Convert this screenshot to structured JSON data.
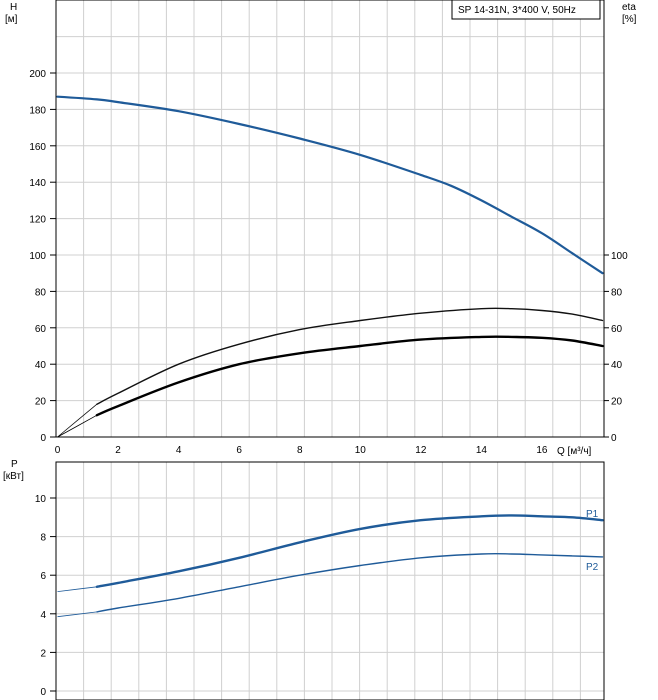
{
  "chart_data": [
    {
      "type": "line",
      "panel": "head-efficiency",
      "legend_box": "SP 14-31N, 3*400 V, 50Hz",
      "ylabel_left": "H",
      "ylabel_left_unit": "[м]",
      "ylabel_right": "eta",
      "ylabel_right_unit": "[%]",
      "xlabel": "Q [м³/ч]",
      "xlim": [
        0,
        18
      ],
      "ylim": [
        0,
        210
      ],
      "x_ticks": [
        "0",
        "2",
        "4",
        "6",
        "8",
        "10",
        "12",
        "14",
        "16"
      ],
      "y_ticks_left": [
        "0",
        "20",
        "40",
        "60",
        "80",
        "100",
        "120",
        "140",
        "160",
        "180",
        "200"
      ],
      "y_ticks_right": [
        "0",
        "20",
        "40",
        "60",
        "80",
        "100"
      ],
      "grid": true,
      "series": [
        {
          "color": "#1f5b99",
          "x": [
            0,
            1.3,
            2,
            4,
            6,
            8,
            10,
            12,
            13,
            14,
            15,
            16,
            17,
            18
          ],
          "y": [
            187,
            185.5,
            184,
            179,
            172,
            164,
            155,
            144,
            138,
            130,
            121,
            112,
            101,
            90
          ]
        },
        {
          "color": "#111111",
          "dashed_segment_to_x": 1.3,
          "x": [
            0,
            1.3,
            2,
            4,
            6,
            8,
            10,
            12,
            14,
            15,
            16,
            17,
            18
          ],
          "y": [
            0,
            18,
            24,
            40,
            51,
            59,
            64,
            68,
            70.5,
            70.5,
            69.5,
            67.5,
            64
          ]
        },
        {
          "color": "#000000",
          "dashed_segment_to_x": 1.3,
          "x": [
            0,
            1.3,
            2,
            4,
            6,
            8,
            10,
            12,
            14,
            15,
            16,
            17,
            18
          ],
          "y": [
            0,
            12,
            17,
            30,
            40,
            46,
            50,
            53.5,
            55,
            55,
            54.5,
            53,
            50
          ]
        }
      ]
    },
    {
      "type": "line",
      "panel": "power",
      "ylabel": "P",
      "ylabel_unit": "[кВт]",
      "ylim": [
        0,
        11
      ],
      "y_ticks": [
        "0",
        "2",
        "4",
        "6",
        "8",
        "10"
      ],
      "grid": true,
      "series": [
        {
          "name": "P1",
          "color": "#1f5b99",
          "dashed_segment_to_x": 1.3,
          "x": [
            0,
            1.3,
            2,
            4,
            6,
            8,
            10,
            12,
            14,
            15,
            16,
            17,
            18
          ],
          "y": [
            5.15,
            5.4,
            5.6,
            6.2,
            6.9,
            7.7,
            8.4,
            8.85,
            9.05,
            9.1,
            9.05,
            9.0,
            8.85
          ]
        },
        {
          "name": "P2",
          "color": "#1f5b99",
          "dashed_segment_to_x": 1.3,
          "x": [
            0,
            1.3,
            2,
            4,
            6,
            8,
            10,
            12,
            14,
            15,
            16,
            17,
            18
          ],
          "y": [
            3.85,
            4.1,
            4.3,
            4.8,
            5.4,
            6.0,
            6.5,
            6.9,
            7.1,
            7.1,
            7.05,
            7.0,
            6.95
          ]
        }
      ]
    }
  ]
}
